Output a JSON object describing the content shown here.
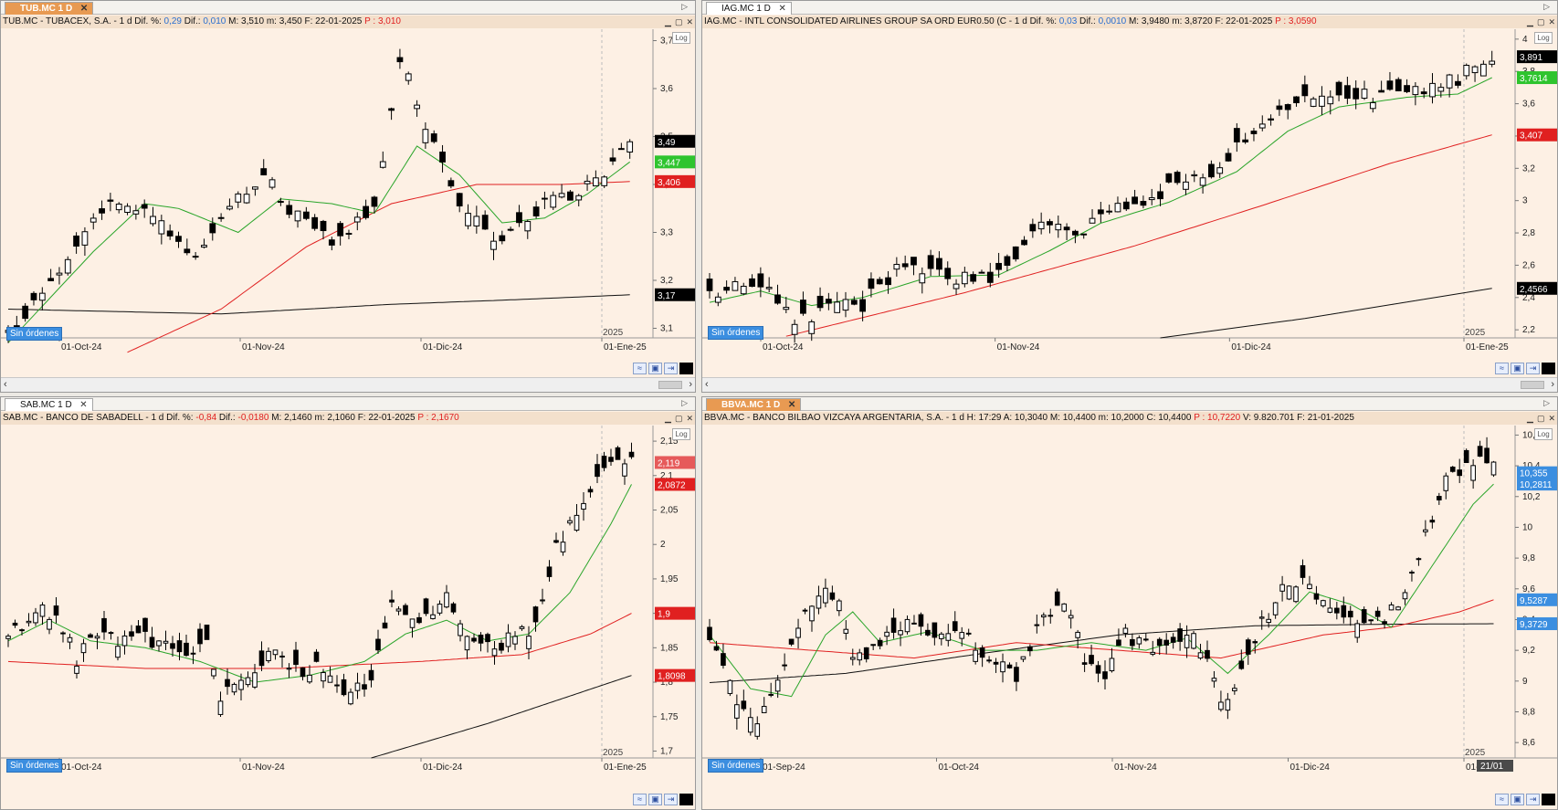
{
  "colors": {
    "bg": "#fdf0e4",
    "ma_fast": "#2aa52a",
    "ma_mid": "#e02020",
    "ma_slow": "#111111",
    "candle_up": "#ffffff",
    "candle_down": "#000000"
  },
  "common": {
    "orders_label": "Sin órdenes",
    "log_label": "Log",
    "year_label": "2025"
  },
  "panels": [
    {
      "id": "tub",
      "tab": "TUB.MC 1 D",
      "tab_active": true,
      "header": [
        {
          "t": "TUB.MC - TUBACEX, S.A. - 1 d  Dif. %: ",
          "c": ""
        },
        {
          "t": "0,29",
          "c": "blue"
        },
        {
          "t": "  Dif.: ",
          "c": ""
        },
        {
          "t": "0,010",
          "c": "blue"
        },
        {
          "t": "  M: 3,510  m: 3,450  F: 22-01-2025  ",
          "c": ""
        },
        {
          "t": "P : 3,010",
          "c": "red"
        }
      ],
      "xlabels": [
        "01-Oct-24",
        "01-Nov-24",
        "01-Dic-24",
        "01-Ene-25"
      ],
      "yticks": [
        "3,7",
        "3,6",
        "3,5",
        "3,4",
        "3,3",
        "3,2",
        "3,1"
      ],
      "badges": [
        {
          "text": "3,49",
          "color": "#000000",
          "tc": "#ffffff"
        },
        {
          "text": "3,447",
          "color": "#2ec42e",
          "tc": "#ffffff"
        },
        {
          "text": "3,406",
          "color": "#e02020",
          "tc": "#ffffff"
        },
        {
          "text": "3,17",
          "color": "#000000",
          "tc": "#ffffff"
        }
      ]
    },
    {
      "id": "iag",
      "tab": "IAG.MC 1 D",
      "tab_active": false,
      "header": [
        {
          "t": "IAG.MC - INTL CONSOLIDATED AIRLINES GROUP SA ORD EUR0.50 (C - 1 d  Dif. %: ",
          "c": ""
        },
        {
          "t": "0,03",
          "c": "blue"
        },
        {
          "t": "  Dif.: ",
          "c": ""
        },
        {
          "t": "0,0010",
          "c": "blue"
        },
        {
          "t": "  M: 3,9480  m: 3,8720  F: 22-01-2025  ",
          "c": ""
        },
        {
          "t": "P : 3,0590",
          "c": "red"
        }
      ],
      "xlabels": [
        "01-Oct-24",
        "01-Nov-24",
        "01-Dic-24",
        "01-Ene-25"
      ],
      "yticks": [
        "4",
        "3,8",
        "3,6",
        "3,4",
        "3,2",
        "3",
        "2,8",
        "2,6",
        "2,4",
        "2,2"
      ],
      "badges": [
        {
          "text": "3,891",
          "color": "#000000",
          "tc": "#ffffff"
        },
        {
          "text": "3,7614",
          "color": "#2ec42e",
          "tc": "#ffffff"
        },
        {
          "text": "3,407",
          "color": "#e02020",
          "tc": "#ffffff"
        },
        {
          "text": "2,4566",
          "color": "#000000",
          "tc": "#ffffff"
        }
      ]
    },
    {
      "id": "sab",
      "tab": "SAB.MC 1 D",
      "tab_active": false,
      "header": [
        {
          "t": "SAB.MC - BANCO DE SABADELL - 1 d  Dif. %: ",
          "c": ""
        },
        {
          "t": "-0,84",
          "c": "red"
        },
        {
          "t": "  Dif.: ",
          "c": ""
        },
        {
          "t": "-0,0180",
          "c": "red"
        },
        {
          "t": "  M: 2,1460  m: 2,1060  F: 22-01-2025  ",
          "c": ""
        },
        {
          "t": "P : 2,1670",
          "c": "red"
        }
      ],
      "xlabels": [
        "01-Oct-24",
        "01-Nov-24",
        "01-Dic-24",
        "01-Ene-25"
      ],
      "yticks": [
        "2,15",
        "2,1",
        "2,05",
        "2",
        "1,95",
        "1,9",
        "1,85",
        "1,8",
        "1,75",
        "1,7"
      ],
      "badges": [
        {
          "text": "2,119",
          "color": "#e65a5a",
          "tc": "#ffffff"
        },
        {
          "text": "2,0872",
          "color": "#e02020",
          "tc": "#ffffff"
        },
        {
          "text": "1,9",
          "color": "#e02020",
          "tc": "#ffffff"
        },
        {
          "text": "1,8098",
          "color": "#e02020",
          "tc": "#ffffff"
        }
      ]
    },
    {
      "id": "bbva",
      "tab": "BBVA.MC 1 D",
      "tab_active": true,
      "header": [
        {
          "t": "BBVA.MC - BANCO BILBAO VIZCAYA ARGENTARIA, S.A. - 1 d  H: 17:29  A: 10,3040  M: 10,4400  m: 10,2000  C: 10,4400  ",
          "c": ""
        },
        {
          "t": "P : 10,7220",
          "c": "red"
        },
        {
          "t": "  V: 9.820.701  F: 21-01-2025",
          "c": ""
        }
      ],
      "xlabels": [
        "01-Sep-24",
        "01-Oct-24",
        "01-Nov-24",
        "01-Dic-24",
        "01-Ene-25"
      ],
      "yticks": [
        "10,6",
        "10,4",
        "10,2",
        "10",
        "9,8",
        "9,6",
        "9,4",
        "9,2",
        "9",
        "8,8",
        "8,6"
      ],
      "badges": [
        {
          "text": "10,355",
          "color": "#3b8ee0",
          "tc": "#ffffff"
        },
        {
          "text": "10,2811",
          "color": "#3b8ee0",
          "tc": "#ffffff"
        },
        {
          "text": "9,5287",
          "color": "#3b8ee0",
          "tc": "#ffffff"
        },
        {
          "text": "9,3729",
          "color": "#3b8ee0",
          "tc": "#ffffff"
        }
      ],
      "date_badge": "21/01"
    }
  ],
  "chart_data": [
    {
      "type": "candlestick",
      "panel": "tub",
      "ylim": [
        3.08,
        3.72
      ],
      "log_scale_button": true,
      "x": [
        "01-Oct-24",
        "01-Nov-24",
        "01-Dic-24",
        "01-Ene-25"
      ],
      "anchors": [
        [
          0,
          3.09
        ],
        [
          6,
          3.22
        ],
        [
          10,
          3.34
        ],
        [
          13,
          3.37
        ],
        [
          17,
          3.33
        ],
        [
          22,
          3.25
        ],
        [
          26,
          3.36
        ],
        [
          30,
          3.42
        ],
        [
          34,
          3.33
        ],
        [
          38,
          3.28
        ],
        [
          43,
          3.35
        ],
        [
          46,
          3.66
        ],
        [
          50,
          3.48
        ],
        [
          54,
          3.33
        ],
        [
          58,
          3.28
        ],
        [
          62,
          3.35
        ],
        [
          66,
          3.38
        ],
        [
          70,
          3.43
        ],
        [
          73,
          3.49
        ]
      ],
      "ma_fast": [
        [
          0,
          3.07
        ],
        [
          10,
          3.26
        ],
        [
          16,
          3.36
        ],
        [
          20,
          3.35
        ],
        [
          27,
          3.3
        ],
        [
          32,
          3.37
        ],
        [
          38,
          3.36
        ],
        [
          43,
          3.34
        ],
        [
          48,
          3.48
        ],
        [
          53,
          3.42
        ],
        [
          58,
          3.32
        ],
        [
          63,
          3.33
        ],
        [
          68,
          3.38
        ],
        [
          73,
          3.447
        ]
      ],
      "ma_mid": [
        [
          14,
          3.05
        ],
        [
          25,
          3.14
        ],
        [
          35,
          3.27
        ],
        [
          45,
          3.36
        ],
        [
          55,
          3.4
        ],
        [
          65,
          3.4
        ],
        [
          73,
          3.406
        ]
      ],
      "ma_slow": [
        [
          0,
          3.14
        ],
        [
          25,
          3.13
        ],
        [
          45,
          3.15
        ],
        [
          60,
          3.16
        ],
        [
          73,
          3.17
        ]
      ]
    },
    {
      "type": "candlestick",
      "panel": "iag",
      "ylim": [
        2.15,
        4.05
      ],
      "log_scale_button": true,
      "x": [
        "01-Oct-24",
        "01-Nov-24",
        "01-Dic-24",
        "01-Ene-25"
      ],
      "anchors": [
        [
          0,
          2.44
        ],
        [
          6,
          2.48
        ],
        [
          8,
          2.41
        ],
        [
          10,
          2.24
        ],
        [
          14,
          2.33
        ],
        [
          18,
          2.36
        ],
        [
          22,
          2.57
        ],
        [
          26,
          2.55
        ],
        [
          30,
          2.52
        ],
        [
          34,
          2.54
        ],
        [
          38,
          2.82
        ],
        [
          44,
          2.82
        ],
        [
          48,
          2.96
        ],
        [
          52,
          3.02
        ],
        [
          56,
          3.12
        ],
        [
          60,
          3.2
        ],
        [
          64,
          3.46
        ],
        [
          68,
          3.54
        ],
        [
          72,
          3.67
        ],
        [
          78,
          3.64
        ],
        [
          82,
          3.66
        ],
        [
          88,
          3.76
        ],
        [
          92,
          3.9
        ]
      ],
      "ma_fast": [
        [
          0,
          2.37
        ],
        [
          6,
          2.44
        ],
        [
          12,
          2.35
        ],
        [
          18,
          2.4
        ],
        [
          26,
          2.53
        ],
        [
          34,
          2.54
        ],
        [
          40,
          2.69
        ],
        [
          46,
          2.86
        ],
        [
          54,
          2.99
        ],
        [
          62,
          3.18
        ],
        [
          68,
          3.43
        ],
        [
          74,
          3.58
        ],
        [
          82,
          3.64
        ],
        [
          88,
          3.66
        ],
        [
          92,
          3.7614
        ]
      ],
      "ma_mid": [
        [
          9,
          2.16
        ],
        [
          30,
          2.43
        ],
        [
          50,
          2.72
        ],
        [
          65,
          2.97
        ],
        [
          80,
          3.23
        ],
        [
          92,
          3.407
        ]
      ],
      "ma_slow": [
        [
          53,
          2.15
        ],
        [
          70,
          2.27
        ],
        [
          92,
          2.4566
        ]
      ]
    },
    {
      "type": "candlestick",
      "panel": "sab",
      "ylim": [
        1.69,
        2.17
      ],
      "log_scale_button": true,
      "x": [
        "01-Oct-24",
        "01-Nov-24",
        "01-Dic-24",
        "01-Ene-25"
      ],
      "anchors": [
        [
          0,
          1.87
        ],
        [
          5,
          1.91
        ],
        [
          8,
          1.88
        ],
        [
          10,
          1.83
        ],
        [
          12,
          1.87
        ],
        [
          16,
          1.86
        ],
        [
          20,
          1.87
        ],
        [
          24,
          1.84
        ],
        [
          27,
          1.84
        ],
        [
          29,
          1.87
        ],
        [
          31,
          1.78
        ],
        [
          34,
          1.8
        ],
        [
          38,
          1.84
        ],
        [
          42,
          1.82
        ],
        [
          46,
          1.82
        ],
        [
          50,
          1.78
        ],
        [
          53,
          1.8
        ],
        [
          56,
          1.91
        ],
        [
          60,
          1.89
        ],
        [
          64,
          1.92
        ],
        [
          68,
          1.86
        ],
        [
          71,
          1.85
        ],
        [
          74,
          1.87
        ],
        [
          77,
          1.88
        ],
        [
          80,
          2.0
        ],
        [
          84,
          2.06
        ],
        [
          88,
          2.12
        ],
        [
          91,
          2.13
        ]
      ],
      "ma_fast": [
        [
          0,
          1.86
        ],
        [
          6,
          1.89
        ],
        [
          12,
          1.86
        ],
        [
          20,
          1.85
        ],
        [
          28,
          1.83
        ],
        [
          36,
          1.8
        ],
        [
          44,
          1.81
        ],
        [
          52,
          1.83
        ],
        [
          58,
          1.87
        ],
        [
          64,
          1.89
        ],
        [
          70,
          1.86
        ],
        [
          76,
          1.87
        ],
        [
          82,
          1.93
        ],
        [
          88,
          2.03
        ],
        [
          91,
          2.0872
        ]
      ],
      "ma_mid": [
        [
          0,
          1.83
        ],
        [
          20,
          1.82
        ],
        [
          40,
          1.82
        ],
        [
          60,
          1.83
        ],
        [
          75,
          1.84
        ],
        [
          85,
          1.87
        ],
        [
          91,
          1.9
        ]
      ],
      "ma_slow": [
        [
          53,
          1.69
        ],
        [
          70,
          1.74
        ],
        [
          91,
          1.8098
        ]
      ]
    },
    {
      "type": "candlestick",
      "panel": "bbva",
      "ylim": [
        8.5,
        10.65
      ],
      "log_scale_button": true,
      "x": [
        "01-Sep-24",
        "01-Oct-24",
        "01-Nov-24",
        "01-Dic-24",
        "01-Ene-25"
      ],
      "anchors": [
        [
          0,
          9.3
        ],
        [
          3,
          9.0
        ],
        [
          5,
          8.8
        ],
        [
          7,
          8.72
        ],
        [
          10,
          9.0
        ],
        [
          14,
          9.45
        ],
        [
          17,
          9.62
        ],
        [
          19,
          9.5
        ],
        [
          21,
          9.1
        ],
        [
          25,
          9.25
        ],
        [
          29,
          9.35
        ],
        [
          33,
          9.28
        ],
        [
          37,
          9.3
        ],
        [
          41,
          9.15
        ],
        [
          45,
          9.05
        ],
        [
          49,
          9.4
        ],
        [
          52,
          9.55
        ],
        [
          55,
          9.15
        ],
        [
          58,
          9.05
        ],
        [
          61,
          9.3
        ],
        [
          64,
          9.25
        ],
        [
          67,
          9.2
        ],
        [
          70,
          9.35
        ],
        [
          73,
          9.1
        ],
        [
          75,
          8.85
        ],
        [
          77,
          8.95
        ],
        [
          80,
          9.3
        ],
        [
          84,
          9.6
        ],
        [
          88,
          9.65
        ],
        [
          91,
          9.45
        ],
        [
          95,
          9.35
        ],
        [
          99,
          9.4
        ],
        [
          102,
          9.6
        ],
        [
          105,
          9.95
        ],
        [
          108,
          10.3
        ],
        [
          112,
          10.4
        ],
        [
          115,
          10.44
        ]
      ],
      "ma_fast": [
        [
          0,
          9.3
        ],
        [
          6,
          8.95
        ],
        [
          12,
          8.9
        ],
        [
          17,
          9.3
        ],
        [
          21,
          9.45
        ],
        [
          25,
          9.25
        ],
        [
          32,
          9.32
        ],
        [
          40,
          9.2
        ],
        [
          48,
          9.2
        ],
        [
          56,
          9.25
        ],
        [
          64,
          9.2
        ],
        [
          70,
          9.28
        ],
        [
          76,
          9.05
        ],
        [
          82,
          9.3
        ],
        [
          88,
          9.58
        ],
        [
          94,
          9.5
        ],
        [
          100,
          9.35
        ],
        [
          106,
          9.75
        ],
        [
          112,
          10.15
        ],
        [
          115,
          10.2811
        ]
      ],
      "ma_mid": [
        [
          0,
          9.25
        ],
        [
          15,
          9.2
        ],
        [
          30,
          9.15
        ],
        [
          45,
          9.25
        ],
        [
          60,
          9.2
        ],
        [
          75,
          9.15
        ],
        [
          90,
          9.3
        ],
        [
          100,
          9.35
        ],
        [
          110,
          9.45
        ],
        [
          115,
          9.5287
        ]
      ],
      "ma_slow": [
        [
          0,
          8.99
        ],
        [
          20,
          9.05
        ],
        [
          40,
          9.18
        ],
        [
          60,
          9.3
        ],
        [
          80,
          9.36
        ],
        [
          100,
          9.37
        ],
        [
          115,
          9.3729
        ]
      ]
    }
  ]
}
